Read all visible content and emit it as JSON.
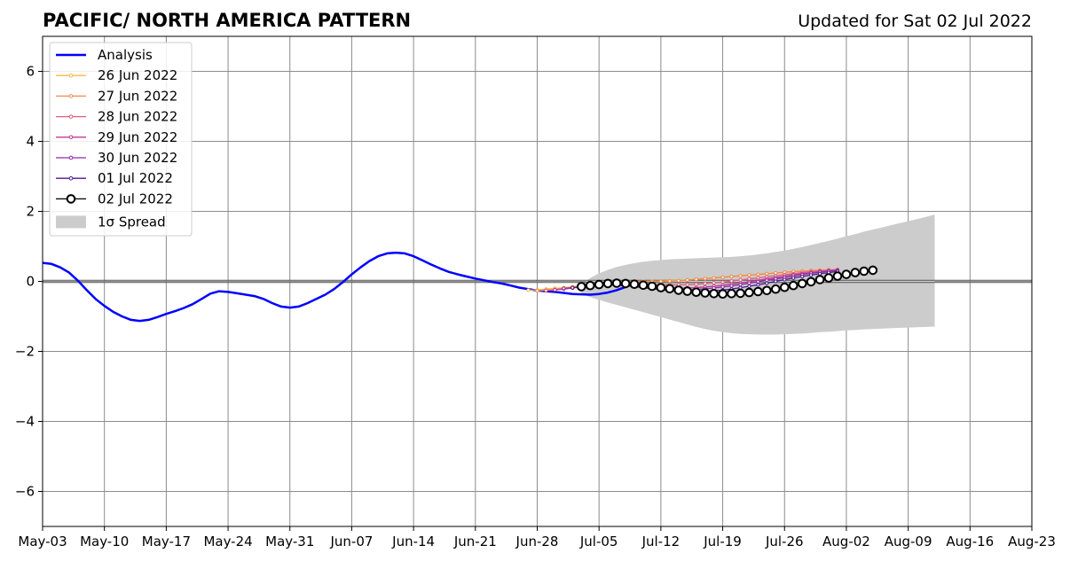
{
  "chart_data": {
    "type": "line",
    "title": "PACIFIC/ NORTH AMERICA PATTERN",
    "subtitle": "Updated for Sat 02 Jul 2022",
    "xlim": [
      "2022-05-03",
      "2022-08-23"
    ],
    "ylim": [
      -7,
      7
    ],
    "x_ticks": [
      "May-03",
      "May-10",
      "May-17",
      "May-24",
      "May-31",
      "Jun-07",
      "Jun-14",
      "Jun-21",
      "Jun-28",
      "Jul-05",
      "Jul-12",
      "Jul-19",
      "Jul-26",
      "Aug-02",
      "Aug-09",
      "Aug-16",
      "Aug-23"
    ],
    "y_ticks": [
      6,
      4,
      2,
      0,
      -2,
      -4,
      -6
    ],
    "grid": true,
    "legend_placement": "top-left",
    "legend": {
      "analysis": "Analysis",
      "spread": "1σ Spread"
    },
    "analysis": {
      "name": "Analysis",
      "color": "#0000ff",
      "start": "2022-05-03",
      "values": [
        0.53,
        0.5,
        0.4,
        0.25,
        0.02,
        -0.25,
        -0.5,
        -0.7,
        -0.87,
        -1.0,
        -1.1,
        -1.13,
        -1.1,
        -1.02,
        -0.93,
        -0.85,
        -0.76,
        -0.65,
        -0.5,
        -0.35,
        -0.28,
        -0.3,
        -0.34,
        -0.38,
        -0.42,
        -0.5,
        -0.62,
        -0.72,
        -0.75,
        -0.72,
        -0.62,
        -0.5,
        -0.38,
        -0.22,
        -0.02,
        0.2,
        0.4,
        0.58,
        0.72,
        0.8,
        0.82,
        0.8,
        0.72,
        0.6,
        0.48,
        0.37,
        0.27,
        0.2,
        0.14,
        0.08,
        0.03,
        -0.02,
        -0.06,
        -0.12,
        -0.18,
        -0.22,
        -0.26,
        -0.28,
        -0.3,
        -0.33,
        -0.36,
        -0.37,
        -0.38,
        -0.36,
        -0.32,
        -0.25,
        -0.16
      ]
    },
    "forecasts": [
      {
        "name": "26 Jun 2022",
        "color": "#f5b942",
        "start": "2022-06-27",
        "values": [
          -0.25,
          -0.24,
          -0.22,
          -0.2,
          -0.18,
          -0.15,
          -0.12,
          -0.09,
          -0.06,
          -0.04,
          -0.02,
          -0.01,
          0.0,
          0.0,
          0.0,
          0.01,
          0.02,
          0.03,
          0.04,
          0.06,
          0.08,
          0.1,
          0.12,
          0.14,
          0.16,
          0.18,
          0.2,
          0.22,
          0.24,
          0.25,
          0.27,
          0.29,
          0.3,
          0.32,
          0.33,
          0.34
        ]
      },
      {
        "name": "27 Jun 2022",
        "color": "#f08a4b",
        "start": "2022-06-28",
        "values": [
          -0.27,
          -0.25,
          -0.23,
          -0.2,
          -0.17,
          -0.14,
          -0.11,
          -0.08,
          -0.05,
          -0.03,
          -0.02,
          -0.01,
          -0.01,
          -0.01,
          0.0,
          0.01,
          0.02,
          0.04,
          0.06,
          0.08,
          0.1,
          0.12,
          0.14,
          0.16,
          0.18,
          0.2,
          0.22,
          0.24,
          0.26,
          0.28,
          0.29,
          0.31,
          0.32,
          0.33,
          0.34
        ]
      },
      {
        "name": "28 Jun 2022",
        "color": "#e0607e",
        "start": "2022-06-29",
        "values": [
          -0.26,
          -0.24,
          -0.21,
          -0.18,
          -0.15,
          -0.12,
          -0.09,
          -0.07,
          -0.06,
          -0.06,
          -0.07,
          -0.08,
          -0.09,
          -0.1,
          -0.1,
          -0.1,
          -0.09,
          -0.08,
          -0.06,
          -0.04,
          -0.02,
          0.01,
          0.04,
          0.07,
          0.1,
          0.13,
          0.16,
          0.19,
          0.22,
          0.25,
          0.28,
          0.3,
          0.32,
          0.34
        ]
      },
      {
        "name": "29 Jun 2022",
        "color": "#c03a8e",
        "start": "2022-06-30",
        "values": [
          -0.24,
          -0.22,
          -0.19,
          -0.16,
          -0.13,
          -0.11,
          -0.1,
          -0.1,
          -0.11,
          -0.12,
          -0.14,
          -0.16,
          -0.17,
          -0.18,
          -0.19,
          -0.19,
          -0.18,
          -0.16,
          -0.14,
          -0.11,
          -0.08,
          -0.05,
          -0.01,
          0.03,
          0.07,
          0.11,
          0.15,
          0.19,
          0.22,
          0.25,
          0.28,
          0.3,
          0.32
        ]
      },
      {
        "name": "30 Jun 2022",
        "color": "#8e2aa8",
        "start": "2022-07-01",
        "values": [
          -0.2,
          -0.18,
          -0.15,
          -0.12,
          -0.1,
          -0.1,
          -0.11,
          -0.13,
          -0.15,
          -0.18,
          -0.2,
          -0.22,
          -0.23,
          -0.24,
          -0.24,
          -0.23,
          -0.21,
          -0.19,
          -0.16,
          -0.13,
          -0.09,
          -0.05,
          -0.01,
          0.03,
          0.07,
          0.11,
          0.15,
          0.19,
          0.23,
          0.26,
          0.29,
          0.31
        ]
      },
      {
        "name": "01 Jul 2022",
        "color": "#4b1a8a",
        "start": "2022-07-02",
        "values": [
          -0.18,
          -0.15,
          -0.12,
          -0.1,
          -0.09,
          -0.1,
          -0.12,
          -0.15,
          -0.18,
          -0.21,
          -0.24,
          -0.26,
          -0.28,
          -0.29,
          -0.3,
          -0.29,
          -0.27,
          -0.25,
          -0.22,
          -0.18,
          -0.14,
          -0.1,
          -0.05,
          0.0,
          0.05,
          0.1,
          0.14,
          0.18,
          0.22,
          0.25,
          0.28
        ]
      },
      {
        "name": "02 Jul 2022",
        "color": "#000000",
        "start": "2022-07-03",
        "values": [
          -0.15,
          -0.12,
          -0.09,
          -0.06,
          -0.05,
          -0.06,
          -0.08,
          -0.11,
          -0.14,
          -0.18,
          -0.21,
          -0.25,
          -0.28,
          -0.31,
          -0.33,
          -0.35,
          -0.36,
          -0.35,
          -0.34,
          -0.32,
          -0.29,
          -0.26,
          -0.22,
          -0.17,
          -0.12,
          -0.06,
          -0.01,
          0.05,
          0.1,
          0.15,
          0.2,
          0.25,
          0.29,
          0.32
        ]
      }
    ],
    "spread": {
      "name": "1σ Spread",
      "color": "#cccccc",
      "start": "2022-07-03",
      "upper": [
        -0.1,
        0.1,
        0.23,
        0.33,
        0.41,
        0.47,
        0.52,
        0.56,
        0.59,
        0.61,
        0.63,
        0.64,
        0.65,
        0.66,
        0.67,
        0.68,
        0.69,
        0.7,
        0.72,
        0.74,
        0.77,
        0.8,
        0.84,
        0.88,
        0.93,
        0.98,
        1.04,
        1.1,
        1.16,
        1.22,
        1.29,
        1.35,
        1.42,
        1.48,
        1.54,
        1.6,
        1.66,
        1.72,
        1.78,
        1.84,
        1.91
      ],
      "lower": [
        -0.35,
        -0.45,
        -0.53,
        -0.6,
        -0.67,
        -0.74,
        -0.81,
        -0.88,
        -0.95,
        -1.02,
        -1.09,
        -1.16,
        -1.23,
        -1.3,
        -1.36,
        -1.41,
        -1.45,
        -1.48,
        -1.5,
        -1.51,
        -1.52,
        -1.52,
        -1.52,
        -1.51,
        -1.5,
        -1.49,
        -1.47,
        -1.45,
        -1.44,
        -1.42,
        -1.4,
        -1.39,
        -1.37,
        -1.36,
        -1.35,
        -1.34,
        -1.33,
        -1.32,
        -1.31,
        -1.3,
        -1.29
      ]
    }
  }
}
